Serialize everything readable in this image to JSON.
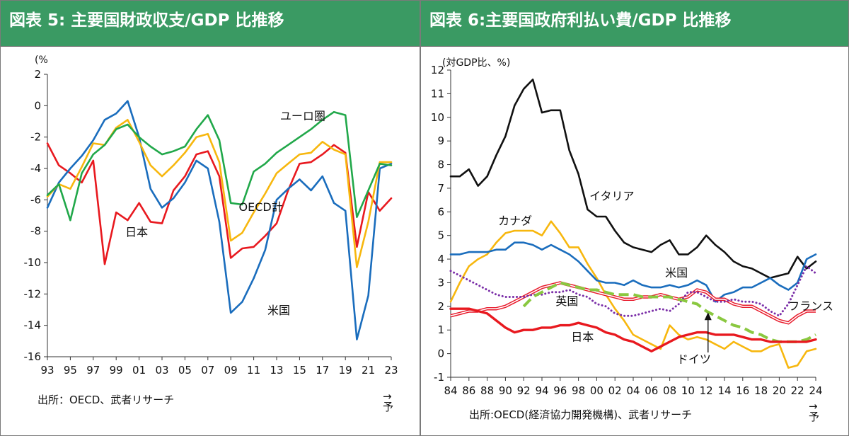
{
  "chart_data": [
    {
      "type": "line",
      "title": "図表 5: 主要国財政収支/GDP 比推移",
      "ylabel": "(%",
      "ylim": [
        -16,
        2
      ],
      "yticks": [
        2,
        0,
        -2,
        -4,
        -6,
        -8,
        -10,
        -12,
        -14,
        -16
      ],
      "xlim": [
        1993,
        2023
      ],
      "xticks": [
        1993,
        1995,
        1997,
        1999,
        2001,
        2003,
        2005,
        2007,
        2009,
        2011,
        2013,
        2015,
        2017,
        2019,
        2021,
        2023
      ],
      "xtick_labels": [
        "93",
        "95",
        "97",
        "99",
        "01",
        "03",
        "05",
        "07",
        "09",
        "11",
        "13",
        "15",
        "17",
        "19",
        "21",
        "23"
      ],
      "grid": false,
      "legend": "none",
      "source": "出所：OECD、武者リサーチ",
      "corner_note": "→予",
      "x": [
        1993,
        1994,
        1995,
        1996,
        1997,
        1998,
        1999,
        2000,
        2001,
        2002,
        2003,
        2004,
        2005,
        2006,
        2007,
        2008,
        2009,
        2010,
        2011,
        2012,
        2013,
        2014,
        2015,
        2016,
        2017,
        2018,
        2019,
        2020,
        2021,
        2022,
        2023
      ],
      "series": [
        {
          "name": "日本",
          "color": "#e8191f",
          "values": [
            -2.4,
            -3.8,
            -4.3,
            -4.9,
            -3.5,
            -10.1,
            -6.8,
            -7.3,
            -6.2,
            -7.4,
            -7.5,
            -5.4,
            -4.5,
            -3.1,
            -2.9,
            -4.5,
            -9.7,
            -9.1,
            -9.0,
            -8.3,
            -7.5,
            -5.4,
            -3.7,
            -3.6,
            -3.1,
            -2.5,
            -3.0,
            -9.0,
            -5.5,
            -6.7,
            -5.9
          ]
        },
        {
          "name": "米国",
          "color": "#1a6dbd",
          "values": [
            -6.5,
            -4.9,
            -4.0,
            -3.2,
            -2.2,
            -0.9,
            -0.5,
            0.3,
            -2.0,
            -5.3,
            -6.5,
            -5.9,
            -4.9,
            -3.5,
            -4.0,
            -7.4,
            -13.2,
            -12.5,
            -11.0,
            -9.2,
            -6.0,
            -5.3,
            -4.7,
            -5.4,
            -4.5,
            -6.2,
            -6.7,
            -14.9,
            -12.1,
            -4.0,
            -3.7
          ]
        },
        {
          "name": "OECD計",
          "color": "#f7b70e",
          "values": [
            -5.8,
            -5.0,
            -5.3,
            -3.9,
            -2.4,
            -2.5,
            -1.4,
            -0.9,
            -2.3,
            -3.8,
            -4.5,
            -3.8,
            -3.0,
            -2.0,
            -1.8,
            -3.6,
            -8.6,
            -8.1,
            -6.8,
            -5.6,
            -4.3,
            -3.7,
            -3.1,
            -3.0,
            -2.3,
            -2.8,
            -3.1,
            -10.3,
            -7.4,
            -3.6,
            -3.6
          ]
        },
        {
          "name": "ユーロ圏",
          "color": "#21a84a",
          "values": [
            -5.7,
            -5.0,
            -7.3,
            -4.3,
            -3.1,
            -2.5,
            -1.5,
            -1.2,
            -2.0,
            -2.6,
            -3.1,
            -2.9,
            -2.6,
            -1.5,
            -0.6,
            -2.2,
            -6.2,
            -6.3,
            -4.2,
            -3.7,
            -3.0,
            -2.5,
            -2.0,
            -1.5,
            -0.9,
            -0.4,
            -0.6,
            -7.1,
            -5.4,
            -3.7,
            -3.8
          ]
        }
      ],
      "labels": [
        {
          "text": "ユーロ圏",
          "x": 2013.3,
          "y": -0.9
        },
        {
          "text": "OECD計",
          "x": 2009.7,
          "y": -6.7
        },
        {
          "text": "日本",
          "x": 1999.8,
          "y": -8.3
        },
        {
          "text": "米国",
          "x": 2012.2,
          "y": -13.3
        }
      ]
    },
    {
      "type": "line",
      "title": "図表 6:主要国政府利払い費/GDP 比推移",
      "ylabel": "(対GDP比、%)",
      "ylim": [
        -1,
        12
      ],
      "yticks": [
        12,
        11,
        10,
        9,
        8,
        7,
        6,
        5,
        4,
        3,
        2,
        1,
        0,
        -1
      ],
      "xlim": [
        1984,
        2024
      ],
      "xticks": [
        1984,
        1986,
        1988,
        1990,
        1992,
        1994,
        1996,
        1998,
        2000,
        2002,
        2004,
        2006,
        2008,
        2010,
        2012,
        2014,
        2016,
        2018,
        2020,
        2022,
        2024
      ],
      "xtick_labels": [
        "84",
        "86",
        "88",
        "90",
        "92",
        "94",
        "96",
        "98",
        "00",
        "02",
        "04",
        "06",
        "08",
        "10",
        "12",
        "14",
        "16",
        "18",
        "20",
        "22",
        "24"
      ],
      "grid": false,
      "legend": "none",
      "source": "出所:OECD(経済協力開発機構)、武者リサーチ",
      "corner_note": "→予",
      "series": [
        {
          "name": "イタリア",
          "color": "#111111",
          "style": "solid",
          "x": [
            1984,
            1985,
            1986,
            1987,
            1988,
            1989,
            1990,
            1991,
            1992,
            1993,
            1994,
            1995,
            1996,
            1997,
            1998,
            1999,
            2000,
            2001,
            2002,
            2003,
            2004,
            2005,
            2006,
            2007,
            2008,
            2009,
            2010,
            2011,
            2012,
            2013,
            2014,
            2015,
            2016,
            2017,
            2018,
            2019,
            2020,
            2021,
            2022,
            2023,
            2024
          ],
          "values": [
            7.5,
            7.5,
            7.8,
            7.1,
            7.5,
            8.4,
            9.2,
            10.5,
            11.2,
            11.6,
            10.2,
            10.3,
            10.3,
            8.6,
            7.6,
            6.1,
            5.8,
            5.8,
            5.2,
            4.7,
            4.5,
            4.4,
            4.3,
            4.6,
            4.8,
            4.2,
            4.2,
            4.5,
            5.0,
            4.6,
            4.3,
            3.9,
            3.7,
            3.6,
            3.4,
            3.2,
            3.3,
            3.4,
            4.1,
            3.6,
            3.9
          ]
        },
        {
          "name": "カナダ",
          "color": "#f7b70e",
          "style": "solid",
          "x": [
            1984,
            1985,
            1986,
            1987,
            1988,
            1989,
            1990,
            1991,
            1992,
            1993,
            1994,
            1995,
            1996,
            1997,
            1998,
            1999,
            2000,
            2001,
            2002,
            2003,
            2004,
            2005,
            2006,
            2007,
            2008,
            2009,
            2010,
            2011,
            2012,
            2013,
            2014,
            2015,
            2016,
            2017,
            2018,
            2019,
            2020,
            2021,
            2022,
            2023,
            2024
          ],
          "values": [
            2.2,
            3.0,
            3.7,
            4.0,
            4.2,
            4.7,
            5.1,
            5.2,
            5.2,
            5.2,
            5.0,
            5.6,
            5.1,
            4.5,
            4.5,
            3.8,
            3.2,
            2.5,
            1.9,
            1.4,
            0.8,
            0.6,
            0.4,
            0.2,
            1.2,
            0.8,
            0.6,
            0.7,
            0.6,
            0.4,
            0.2,
            0.5,
            0.3,
            0.1,
            0.1,
            0.3,
            0.4,
            -0.6,
            -0.5,
            0.1,
            0.2
          ]
        },
        {
          "name": "米国",
          "color": "#1a6dbd",
          "style": "solid",
          "x": [
            1984,
            1985,
            1986,
            1987,
            1988,
            1989,
            1990,
            1991,
            1992,
            1993,
            1994,
            1995,
            1996,
            1997,
            1998,
            1999,
            2000,
            2001,
            2002,
            2003,
            2004,
            2005,
            2006,
            2007,
            2008,
            2009,
            2010,
            2011,
            2012,
            2013,
            2014,
            2015,
            2016,
            2017,
            2018,
            2019,
            2020,
            2021,
            2022,
            2023,
            2024
          ],
          "values": [
            4.2,
            4.2,
            4.3,
            4.3,
            4.3,
            4.4,
            4.4,
            4.7,
            4.7,
            4.6,
            4.4,
            4.6,
            4.4,
            4.2,
            3.9,
            3.5,
            3.1,
            3.0,
            3.0,
            2.9,
            3.1,
            2.9,
            2.8,
            2.8,
            2.9,
            2.8,
            2.9,
            3.1,
            2.9,
            2.2,
            2.5,
            2.6,
            2.8,
            2.8,
            3.0,
            3.2,
            2.9,
            2.7,
            3.0,
            4.0,
            4.2
          ]
        },
        {
          "name": "英国",
          "color": "#e8192a",
          "style": "double",
          "x": [
            1984,
            1985,
            1986,
            1987,
            1988,
            1989,
            1990,
            1991,
            1992,
            1993,
            1994,
            1995,
            1996,
            1997,
            1998,
            1999,
            2000,
            2001,
            2002,
            2003,
            2004,
            2005,
            2006,
            2007,
            2008,
            2009,
            2010,
            2011,
            2012,
            2013,
            2014,
            2015,
            2016,
            2017,
            2018,
            2019,
            2020,
            2021,
            2022,
            2023,
            2024
          ],
          "values": [
            1.6,
            1.7,
            1.8,
            1.8,
            1.9,
            1.9,
            2.0,
            2.2,
            2.4,
            2.6,
            2.8,
            2.9,
            3.0,
            2.9,
            2.8,
            2.7,
            2.6,
            2.5,
            2.4,
            2.3,
            2.3,
            2.4,
            2.4,
            2.5,
            2.4,
            2.3,
            2.4,
            2.7,
            2.6,
            2.3,
            2.3,
            2.1,
            2.0,
            2.0,
            1.8,
            1.6,
            1.4,
            1.3,
            1.6,
            1.8,
            1.8
          ]
        },
        {
          "name": "フランス",
          "color": "#7b2fa8",
          "style": "dotted",
          "x": [
            1984,
            1985,
            1986,
            1987,
            1988,
            1989,
            1990,
            1991,
            1992,
            1993,
            1994,
            1995,
            1996,
            1997,
            1998,
            1999,
            2000,
            2001,
            2002,
            2003,
            2004,
            2005,
            2006,
            2007,
            2008,
            2009,
            2010,
            2011,
            2012,
            2013,
            2014,
            2015,
            2016,
            2017,
            2018,
            2019,
            2020,
            2021,
            2022,
            2023,
            2024
          ],
          "values": [
            3.5,
            3.3,
            3.1,
            2.9,
            2.7,
            2.5,
            2.4,
            2.4,
            2.4,
            2.5,
            2.5,
            2.6,
            2.6,
            2.7,
            2.5,
            2.4,
            2.1,
            2.0,
            1.7,
            1.6,
            1.6,
            1.7,
            1.8,
            1.9,
            1.8,
            2.1,
            2.6,
            2.6,
            2.4,
            2.2,
            2.2,
            2.3,
            2.2,
            2.2,
            2.1,
            1.8,
            1.6,
            2.1,
            2.9,
            3.7,
            3.4
          ]
        },
        {
          "name": "ドイツ",
          "color": "#8ac840",
          "style": "dashed",
          "x": [
            1992,
            1993,
            1994,
            1995,
            1996,
            1997,
            1998,
            1999,
            2000,
            2001,
            2002,
            2003,
            2004,
            2005,
            2006,
            2007,
            2008,
            2009,
            2010,
            2011,
            2012,
            2013,
            2014,
            2015,
            2016,
            2017,
            2018,
            2019,
            2020,
            2021,
            2022,
            2023,
            2024
          ],
          "values": [
            2.0,
            2.4,
            2.6,
            2.8,
            3.0,
            2.9,
            2.8,
            2.7,
            2.7,
            2.6,
            2.5,
            2.5,
            2.5,
            2.4,
            2.4,
            2.4,
            2.4,
            2.3,
            2.2,
            2.1,
            1.8,
            1.6,
            1.4,
            1.2,
            1.1,
            0.9,
            0.8,
            0.6,
            0.5,
            0.5,
            0.5,
            0.6,
            0.8
          ]
        },
        {
          "name": "日本",
          "color": "#e8191f",
          "style": "thick",
          "x": [
            1984,
            1985,
            1986,
            1987,
            1988,
            1989,
            1990,
            1991,
            1992,
            1993,
            1994,
            1995,
            1996,
            1997,
            1998,
            1999,
            2000,
            2001,
            2002,
            2003,
            2004,
            2005,
            2006,
            2007,
            2008,
            2009,
            2010,
            2011,
            2012,
            2013,
            2014,
            2015,
            2016,
            2017,
            2018,
            2019,
            2020,
            2021,
            2022,
            2023,
            2024
          ],
          "values": [
            1.9,
            1.9,
            1.9,
            1.8,
            1.7,
            1.4,
            1.1,
            0.9,
            1.0,
            1.0,
            1.1,
            1.1,
            1.2,
            1.2,
            1.3,
            1.2,
            1.1,
            0.9,
            0.8,
            0.6,
            0.5,
            0.3,
            0.1,
            0.3,
            0.5,
            0.7,
            0.8,
            0.9,
            0.9,
            0.8,
            0.8,
            0.8,
            0.7,
            0.6,
            0.6,
            0.5,
            0.5,
            0.5,
            0.5,
            0.5,
            0.6
          ]
        }
      ],
      "labels": [
        {
          "text": "イタリア",
          "x": 1999.2,
          "y": 6.5
        },
        {
          "text": "カナダ",
          "x": 1989.2,
          "y": 5.45
        },
        {
          "text": "米国",
          "x": 2007.5,
          "y": 3.25
        },
        {
          "text": "英国",
          "x": 1995.5,
          "y": 2.05
        },
        {
          "text": "フランス",
          "x": 2021.0,
          "y": 1.85
        },
        {
          "text": "日本",
          "x": 1997.2,
          "y": 0.55
        },
        {
          "text": "ドイツ",
          "x": 2008.8,
          "y": -0.4
        }
      ]
    }
  ]
}
